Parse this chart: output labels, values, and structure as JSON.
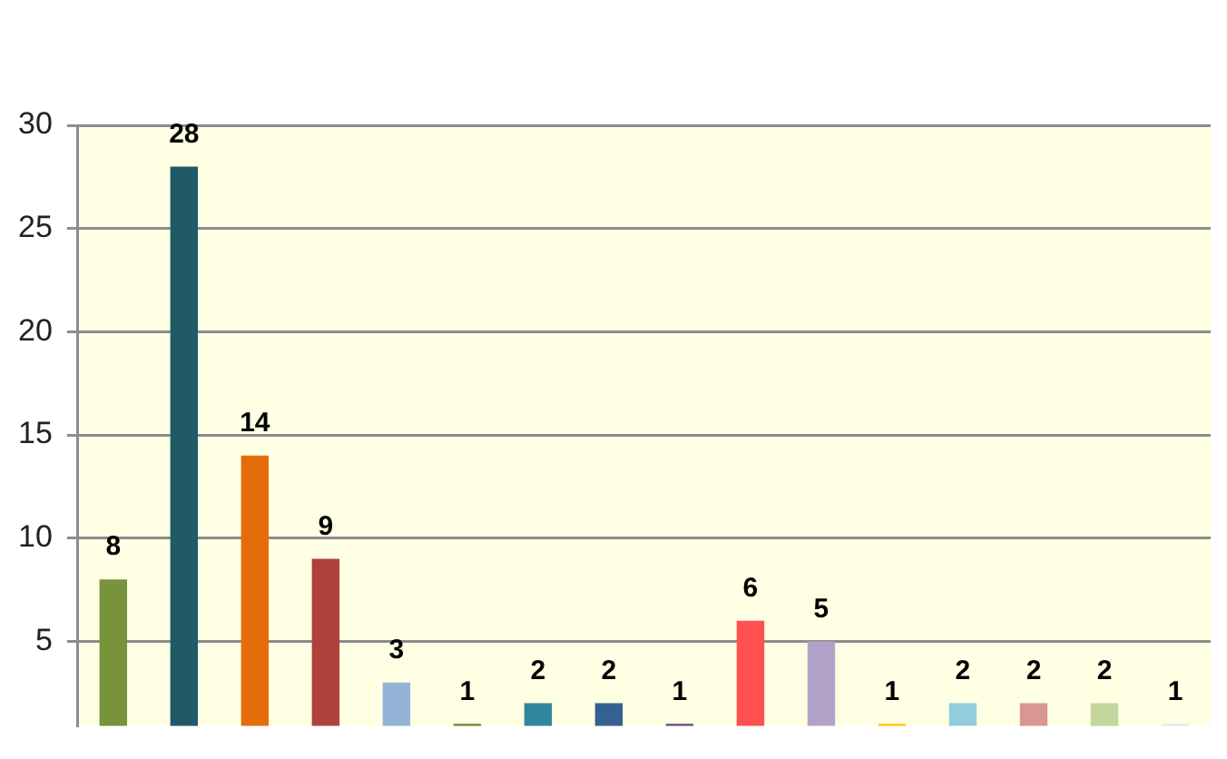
{
  "chart_data": {
    "type": "bar",
    "categories": [
      null,
      null,
      null,
      null,
      null,
      null,
      null,
      null,
      null,
      null,
      null,
      null,
      null,
      null,
      null,
      null
    ],
    "values": [
      8,
      28,
      14,
      9,
      3,
      1,
      2,
      2,
      1,
      6,
      5,
      1,
      2,
      2,
      2,
      1
    ],
    "colors": [
      "#77933c",
      "#215967",
      "#e46c0a",
      "#b0403c",
      "#95b3d7",
      "#6b7f3a",
      "#31859c",
      "#376092",
      "#604a7b",
      "#ff5050",
      "#b3a2c7",
      "#ffc000",
      "#93cddd",
      "#d99694",
      "#c3d69b",
      "#dbeef4"
    ],
    "ylim": [
      0.9,
      30
    ],
    "yticks": [
      5,
      10,
      15,
      20,
      25,
      30
    ],
    "grid": "y",
    "data_labels": true,
    "tick_labels": "y"
  }
}
